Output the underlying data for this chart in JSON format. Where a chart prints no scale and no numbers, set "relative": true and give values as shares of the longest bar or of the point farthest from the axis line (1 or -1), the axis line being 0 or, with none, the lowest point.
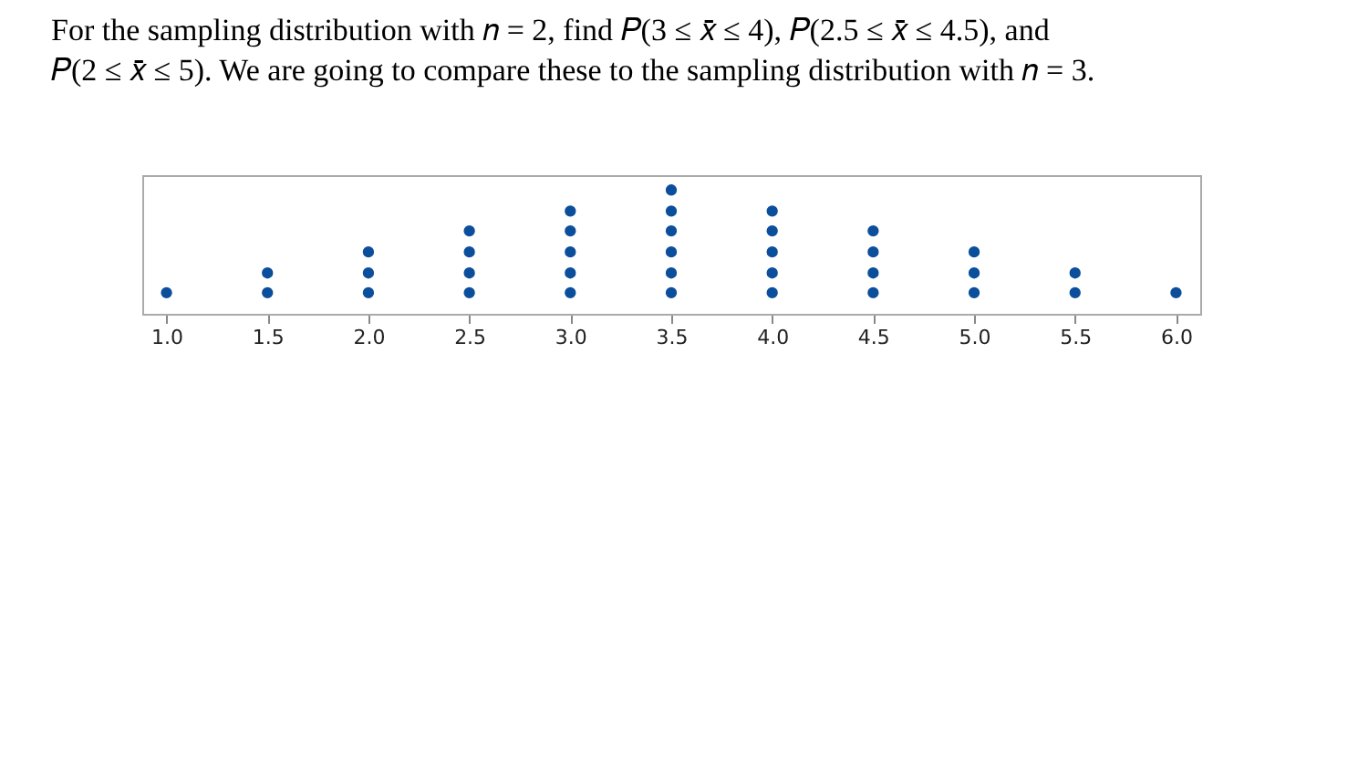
{
  "chart_data": {
    "type": "scatter",
    "title": [
      "For the sampling distribution with 𝑛 = 2, find 𝑃(3 ≤ 𝑥̄ ≤ 4),  𝑃(2.5 ≤ 𝑥̄ ≤ 4.5), and",
      "𝑃(2 ≤ 𝑥̄ ≤ 5). We are going to compare these to the sampling distribution with 𝑛 = 3."
    ],
    "relative": true,
    "marker": "circle",
    "grid": false,
    "tick_labels": "x",
    "xlim": [
      0.88,
      6.12
    ],
    "xticks": [
      {
        "value": 1,
        "label": "1.0"
      },
      {
        "value": 1.5,
        "label": "1.5"
      },
      {
        "value": 2,
        "label": "2.0"
      },
      {
        "value": 2.5,
        "label": "2.5"
      },
      {
        "value": 3,
        "label": "3.0"
      },
      {
        "value": 3.5,
        "label": "3.5"
      },
      {
        "value": 4,
        "label": "4.0"
      },
      {
        "value": 4.5,
        "label": "4.5"
      },
      {
        "value": 5,
        "label": "5.0"
      },
      {
        "value": 5.5,
        "label": "5.5"
      },
      {
        "value": 6,
        "label": "6.0"
      }
    ],
    "series": [
      {
        "color": "#0b4f9c",
        "x": [
          1,
          1.5,
          1.5,
          2,
          2,
          2,
          2.5,
          2.5,
          2.5,
          2.5,
          3,
          3,
          3,
          3,
          3,
          3.5,
          3.5,
          3.5,
          3.5,
          3.5,
          3.5,
          4,
          4,
          4,
          4,
          4,
          4.5,
          4.5,
          4.5,
          4.5,
          5,
          5,
          5,
          5.5,
          5.5,
          6
        ],
        "values": [
          0.17,
          0.17,
          0.33,
          0.17,
          0.33,
          0.5,
          0.17,
          0.33,
          0.5,
          0.67,
          0.17,
          0.33,
          0.5,
          0.67,
          0.83,
          0.17,
          0.33,
          0.5,
          0.67,
          0.83,
          1,
          0.17,
          0.33,
          0.5,
          0.67,
          0.83,
          0.17,
          0.33,
          0.5,
          0.67,
          0.17,
          0.33,
          0.5,
          0.17,
          0.33,
          0.17
        ]
      }
    ]
  }
}
